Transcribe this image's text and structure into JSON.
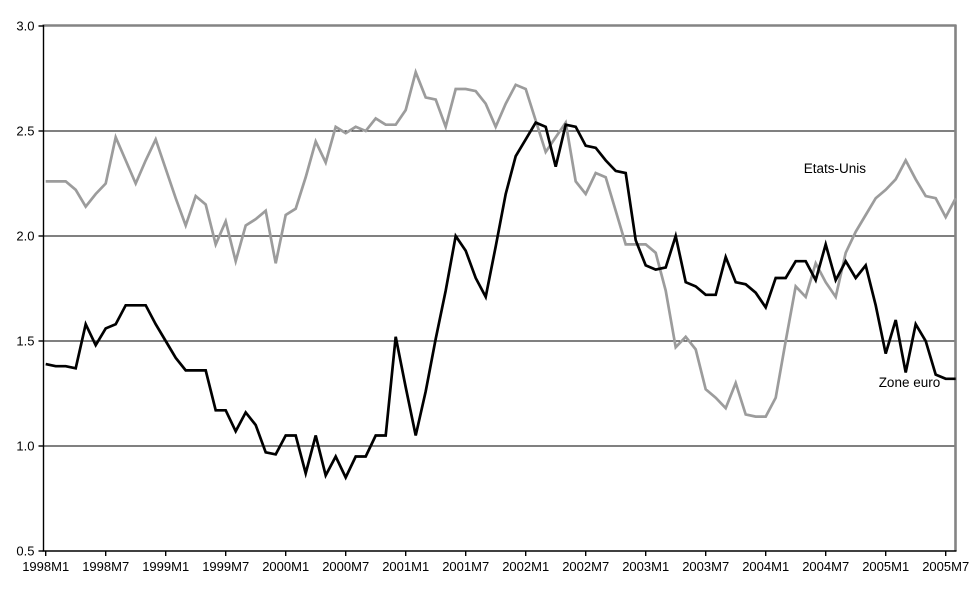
{
  "chart_data": {
    "type": "line",
    "title": "",
    "xlabel": "",
    "ylabel": "",
    "ylim": [
      0.5,
      3.0
    ],
    "y_tick_values": [
      3.0,
      2.5,
      2.0,
      1.5,
      1.0,
      0.5
    ],
    "y_tick_labels": [
      "3.0",
      "2.5",
      "2.0",
      "1.5",
      "1.0",
      "0.5"
    ],
    "y_gridline_values": [
      2.5,
      2.0,
      1.5,
      1.0
    ],
    "grid": "horizontal",
    "legend_position": "in-plot-annotations",
    "x_tick_every_n_months": 6,
    "x_tick_labels": [
      "1998M1",
      "1998M7",
      "1999M1",
      "1999M7",
      "2000M1",
      "2000M7",
      "2001M1",
      "2001M7",
      "2002M1",
      "2002M7",
      "2003M1",
      "2003M7",
      "2004M1",
      "2004M7",
      "2005M1",
      "2005M7"
    ],
    "categories": [
      "1998M1",
      "1998M2",
      "1998M3",
      "1998M4",
      "1998M5",
      "1998M6",
      "1998M7",
      "1998M8",
      "1998M9",
      "1998M10",
      "1998M11",
      "1998M12",
      "1999M1",
      "1999M2",
      "1999M3",
      "1999M4",
      "1999M5",
      "1999M6",
      "1999M7",
      "1999M8",
      "1999M9",
      "1999M10",
      "1999M11",
      "1999M12",
      "2000M1",
      "2000M2",
      "2000M3",
      "2000M4",
      "2000M5",
      "2000M6",
      "2000M7",
      "2000M8",
      "2000M9",
      "2000M10",
      "2000M11",
      "2000M12",
      "2001M1",
      "2001M2",
      "2001M3",
      "2001M4",
      "2001M5",
      "2001M6",
      "2001M7",
      "2001M8",
      "2001M9",
      "2001M10",
      "2001M11",
      "2001M12",
      "2002M1",
      "2002M2",
      "2002M3",
      "2002M4",
      "2002M5",
      "2002M6",
      "2002M7",
      "2002M8",
      "2002M9",
      "2002M10",
      "2002M11",
      "2002M12",
      "2003M1",
      "2003M2",
      "2003M3",
      "2003M4",
      "2003M5",
      "2003M6",
      "2003M7",
      "2003M8",
      "2003M9",
      "2003M10",
      "2003M11",
      "2003M12",
      "2004M1",
      "2004M2",
      "2004M3",
      "2004M4",
      "2004M5",
      "2004M6",
      "2004M7",
      "2004M8",
      "2004M9",
      "2004M10",
      "2004M11",
      "2004M12",
      "2005M1",
      "2005M2",
      "2005M3",
      "2005M4",
      "2005M5",
      "2005M6",
      "2005M7",
      "2005M8"
    ],
    "series": [
      {
        "name": "Etats-Unis",
        "color": "#9c9c9c",
        "values": [
          2.26,
          2.26,
          2.26,
          2.22,
          2.14,
          2.2,
          2.25,
          2.47,
          2.36,
          2.25,
          2.36,
          2.46,
          2.32,
          2.18,
          2.05,
          2.19,
          2.15,
          1.96,
          2.07,
          1.88,
          2.05,
          2.08,
          2.12,
          1.87,
          2.1,
          2.13,
          2.28,
          2.45,
          2.35,
          2.52,
          2.49,
          2.52,
          2.5,
          2.56,
          2.53,
          2.53,
          2.6,
          2.78,
          2.66,
          2.65,
          2.52,
          2.7,
          2.7,
          2.69,
          2.63,
          2.52,
          2.63,
          2.72,
          2.7,
          2.55,
          2.4,
          2.47,
          2.54,
          2.26,
          2.2,
          2.3,
          2.28,
          2.12,
          1.96,
          1.96,
          1.96,
          1.92,
          1.74,
          1.47,
          1.52,
          1.46,
          1.27,
          1.23,
          1.18,
          1.3,
          1.15,
          1.14,
          1.14,
          1.23,
          1.5,
          1.76,
          1.71,
          1.87,
          1.78,
          1.71,
          1.92,
          2.02,
          2.1,
          2.18,
          2.22,
          2.27,
          2.36,
          2.27,
          2.19,
          2.18,
          2.09,
          2.18
        ]
      },
      {
        "name": "Zone euro",
        "color": "#000000",
        "values": [
          1.39,
          1.38,
          1.38,
          1.37,
          1.58,
          1.48,
          1.56,
          1.58,
          1.67,
          1.67,
          1.67,
          1.58,
          1.5,
          1.42,
          1.36,
          1.36,
          1.36,
          1.17,
          1.17,
          1.07,
          1.16,
          1.1,
          0.97,
          0.96,
          1.05,
          1.05,
          0.87,
          1.05,
          0.86,
          0.95,
          0.85,
          0.95,
          0.95,
          1.05,
          1.05,
          1.52,
          1.28,
          1.05,
          1.26,
          1.51,
          1.74,
          2.0,
          1.93,
          1.8,
          1.71,
          1.95,
          2.2,
          2.38,
          2.46,
          2.54,
          2.52,
          2.33,
          2.53,
          2.52,
          2.43,
          2.42,
          2.36,
          2.31,
          2.3,
          1.98,
          1.86,
          1.84,
          1.85,
          2.0,
          1.78,
          1.76,
          1.72,
          1.72,
          1.9,
          1.78,
          1.77,
          1.73,
          1.66,
          1.8,
          1.8,
          1.88,
          1.88,
          1.79,
          1.96,
          1.79,
          1.88,
          1.8,
          1.86,
          1.67,
          1.44,
          1.6,
          1.35,
          1.58,
          1.5,
          1.34,
          1.32,
          1.32
        ]
      }
    ],
    "annotations": [
      {
        "text": "Etats-Unis",
        "month_index": 75.8,
        "value": 2.3
      },
      {
        "text": "Zone euro",
        "month_index": 83.3,
        "value": 1.28
      }
    ]
  },
  "colors": {
    "background": "#ffffff",
    "gridline": "#000000",
    "axis": "#000000",
    "frame_top_right": "#848484",
    "series_us": "#9c9c9c",
    "series_euro": "#000000"
  }
}
